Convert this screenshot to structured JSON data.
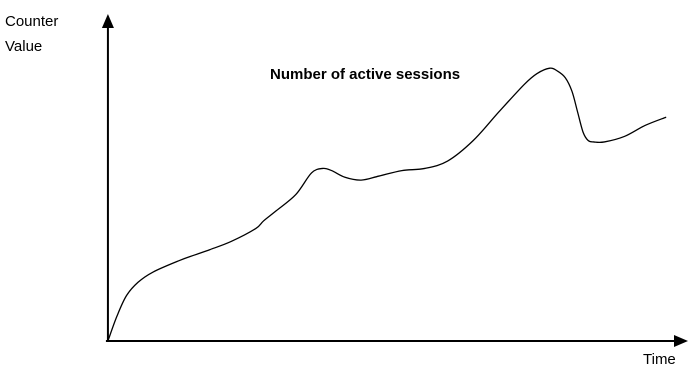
{
  "chart_data": {
    "type": "line",
    "title": "Number of active sessions",
    "xlabel": "Time",
    "ylabel_lines": [
      "Counter",
      "Value"
    ],
    "x": [
      0,
      1.6,
      3.3,
      5.4,
      8.1,
      12.8,
      15.5,
      18.3,
      22.1,
      26.5,
      27.9,
      30.2,
      33.7,
      36.5,
      38.5,
      40.1,
      42.5,
      45.4,
      48.6,
      52.7,
      56.8,
      60.9,
      65.5,
      70.1,
      74.6,
      76.9,
      79.2,
      80.6,
      82.0,
      83.2,
      84.2,
      85.2,
      86.1,
      87.1,
      89.0,
      92.6,
      96.3,
      100
    ],
    "y": [
      0,
      10.3,
      18.9,
      24.6,
      28.9,
      33.7,
      36.0,
      38.3,
      41.7,
      47.1,
      50.3,
      54.6,
      61.4,
      70.4,
      72.3,
      71.4,
      68.6,
      67.4,
      69.1,
      71.4,
      72.3,
      75.4,
      84.0,
      96.0,
      107.4,
      112.0,
      114.3,
      113.1,
      110.3,
      104.6,
      96.0,
      87.4,
      84.0,
      83.4,
      83.4,
      85.7,
      90.3,
      93.7
    ],
    "xlim": [
      -1.6,
      104
    ],
    "ylim": [
      0,
      137
    ],
    "grid": false,
    "legend": "none",
    "line_color": "#000000",
    "axis_color": "#000000"
  }
}
